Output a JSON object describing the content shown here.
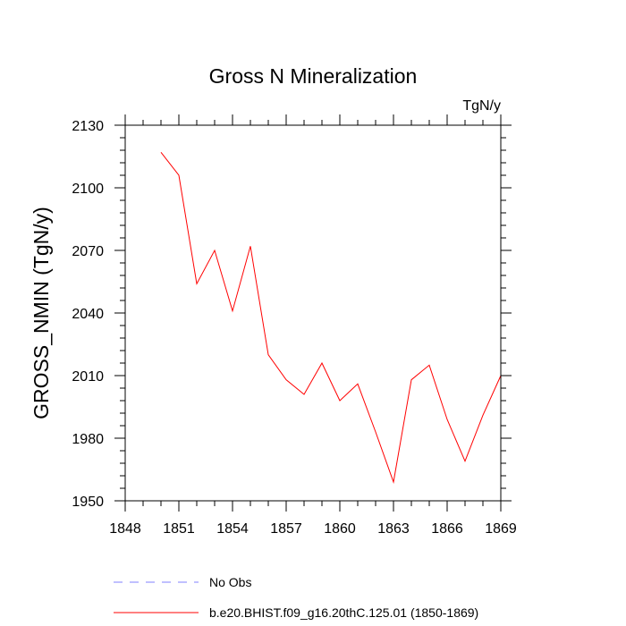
{
  "chart_data": {
    "type": "line",
    "title": "Gross N Mineralization",
    "units_label": "TgN/y",
    "ylabel": "GROSS_NMIN  (TgN/y)",
    "xlabel": "",
    "xlim": [
      1848,
      1869
    ],
    "ylim": [
      1950,
      2130
    ],
    "x_ticks": [
      1848,
      1851,
      1854,
      1857,
      1860,
      1863,
      1866,
      1869
    ],
    "x_minor_ticks": [
      1848,
      1849,
      1850,
      1851,
      1852,
      1853,
      1854,
      1855,
      1856,
      1857,
      1858,
      1859,
      1860,
      1861,
      1862,
      1863,
      1864,
      1865,
      1866,
      1867,
      1868,
      1869
    ],
    "y_ticks": [
      1950,
      1980,
      2010,
      2040,
      2070,
      2100,
      2130
    ],
    "y_minor_step": 6,
    "grid": false,
    "series": [
      {
        "name": "b.e20.BHIST.f09_g16.20thC.125.01 (1850-1869)",
        "color": "#ff0000",
        "style": "solid",
        "x": [
          1850,
          1851,
          1852,
          1853,
          1854,
          1855,
          1856,
          1857,
          1858,
          1859,
          1860,
          1861,
          1862,
          1863,
          1864,
          1865,
          1866,
          1867,
          1868,
          1869
        ],
        "values": [
          2117,
          2106,
          2054,
          2070,
          2041,
          2072,
          2020,
          2008,
          2001,
          2016,
          1998,
          2006,
          1983,
          1959,
          2008,
          2015,
          1989,
          1969,
          1991,
          2010
        ]
      }
    ],
    "legend": [
      {
        "label": "No Obs",
        "color": "#8080ff",
        "style": "dashed"
      },
      {
        "label": "b.e20.BHIST.f09_g16.20thC.125.01 (1850-1869)",
        "color": "#ff0000",
        "style": "solid"
      }
    ],
    "legend_position": "bottom-left"
  }
}
